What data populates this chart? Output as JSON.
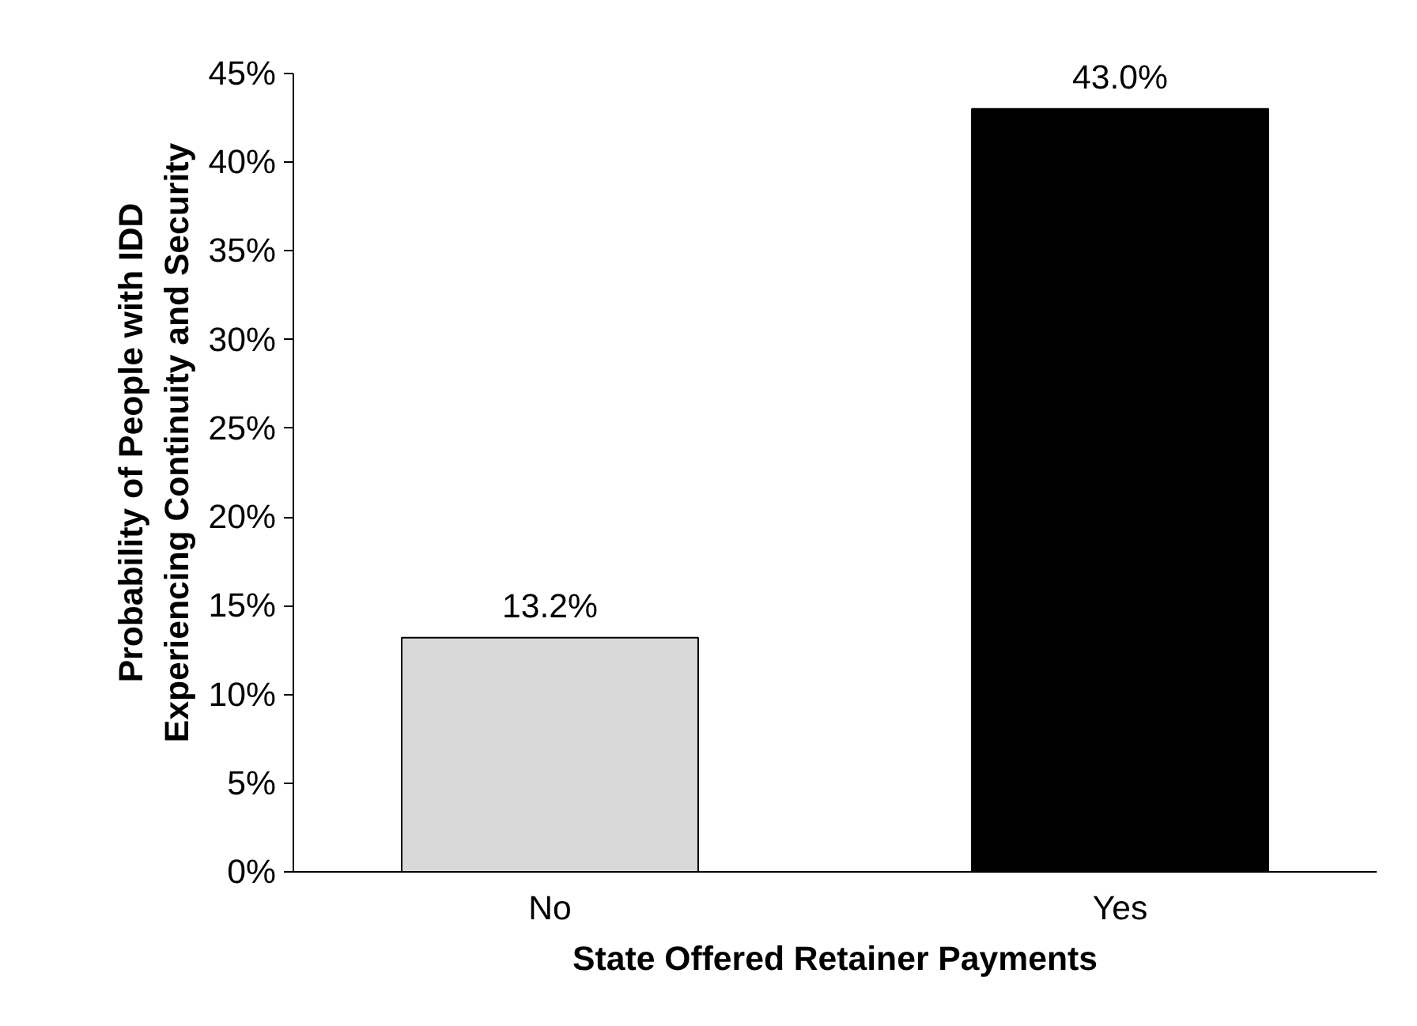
{
  "chart_data": {
    "type": "bar",
    "xlabel": "State Offered Retainer Payments",
    "ylabel": "Probability of People with IDD\nExperiencing Continuity and Security",
    "categories": [
      "No",
      "Yes"
    ],
    "values": [
      13.2,
      43.0
    ],
    "colors": [
      "#d9d9d9",
      "#000000"
    ],
    "value_labels": [
      "13.2%",
      "43.0%"
    ],
    "ylim": [
      0,
      45
    ],
    "yticks": [
      {
        "value": 0,
        "label": "0%"
      },
      {
        "value": 5,
        "label": "5%"
      },
      {
        "value": 10,
        "label": "10%"
      },
      {
        "value": 15,
        "label": "15%"
      },
      {
        "value": 20,
        "label": "20%"
      },
      {
        "value": 25,
        "label": "25%"
      },
      {
        "value": 30,
        "label": "30%"
      },
      {
        "value": 35,
        "label": "35%"
      },
      {
        "value": 40,
        "label": "40%"
      },
      {
        "value": 45,
        "label": "45%"
      }
    ]
  }
}
